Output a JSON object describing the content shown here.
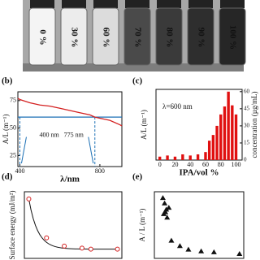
{
  "photo": {
    "labels": [
      "0 %",
      "30 %",
      "60 %",
      "70 %",
      "80 %",
      "90 %",
      "100 %"
    ]
  },
  "chart_data": [
    {
      "type": "line",
      "label": "(b)",
      "ylabel": "A/L (m⁻¹)",
      "xlabel": "λ/nm",
      "color": "#d42020",
      "x": [
        390,
        400,
        450,
        500,
        550,
        600,
        650,
        700,
        750,
        775,
        800,
        850,
        900,
        910
      ],
      "values": [
        77,
        76,
        73,
        71,
        70,
        68,
        66,
        64,
        62,
        60,
        59,
        57,
        53,
        52
      ],
      "xlim": [
        390,
        910
      ],
      "xticks": [
        400,
        800
      ],
      "ylim": [
        15,
        83
      ],
      "yticks": [
        25,
        50,
        75
      ],
      "hline": 60,
      "vlines": [
        400,
        775
      ],
      "annotations": [
        "400 nm",
        "775 nm"
      ]
    },
    {
      "type": "bar",
      "label": "(c)",
      "ylabel": "A/L (m⁻¹)",
      "y2label": "concentration (µg/mL)",
      "xlabel": "IPA/vol %",
      "note": "λ=600 nm",
      "color": "#e01010",
      "x": [
        0,
        10,
        20,
        30,
        40,
        50,
        60,
        65,
        70,
        75,
        80,
        85,
        90,
        95,
        100
      ],
      "values": [
        3,
        4,
        3,
        5,
        4,
        5,
        7,
        17,
        22,
        30,
        40,
        47,
        60,
        48,
        40
      ],
      "xlim": [
        -5,
        108
      ],
      "xticks": [
        0,
        20,
        40,
        60,
        80,
        100
      ],
      "y2lim": [
        0,
        62
      ],
      "y2ticks": [
        0,
        15,
        30,
        45,
        60
      ]
    },
    {
      "type": "scatter",
      "label": "(d)",
      "ylabel": "Surface energy (mJ/m²)",
      "color": "#d42020",
      "marker": "circle",
      "x": [
        0,
        20,
        40,
        60,
        70,
        100
      ],
      "values": [
        73,
        35,
        27,
        25,
        24,
        24
      ],
      "xlim": [
        -5,
        105
      ],
      "ylim": [
        15,
        80
      ]
    },
    {
      "type": "scatter",
      "label": "(e)",
      "ylabel": "A / L (m⁻¹)",
      "color": "#111111",
      "marker": "triangle",
      "x": [
        10,
        12,
        14,
        11,
        13,
        15,
        17,
        20,
        30,
        40,
        55,
        70,
        100
      ],
      "values": [
        68,
        62,
        55,
        50,
        52,
        46,
        57,
        20,
        14,
        10,
        8,
        7,
        5
      ],
      "xlim": [
        0,
        105
      ],
      "ylim": [
        0,
        75
      ]
    }
  ]
}
